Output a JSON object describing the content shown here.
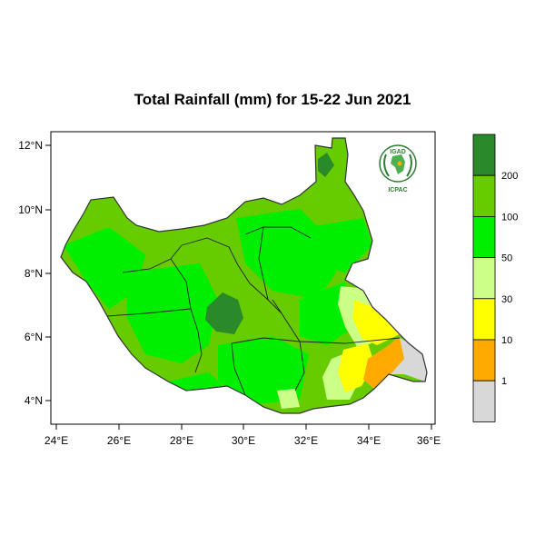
{
  "title": "Total Rainfall (mm) for 15-22 Jun 2021",
  "x_ticks": [
    "24°E",
    "26°E",
    "28°E",
    "30°E",
    "32°E",
    "34°E",
    "36°E"
  ],
  "y_ticks": [
    "12°N",
    "10°N",
    "8°N",
    "6°N",
    "4°N"
  ],
  "colorbar": {
    "labels": [
      "200",
      "100",
      "50",
      "30",
      "10",
      "1"
    ],
    "colors": [
      "#2a8a2a",
      "#66cc00",
      "#00ee00",
      "#ccff88",
      "#ffff00",
      "#ffaa00",
      "#d8d8d8"
    ]
  },
  "logo": {
    "top_text": "IGAD",
    "bottom_text": "ICPAC"
  }
}
